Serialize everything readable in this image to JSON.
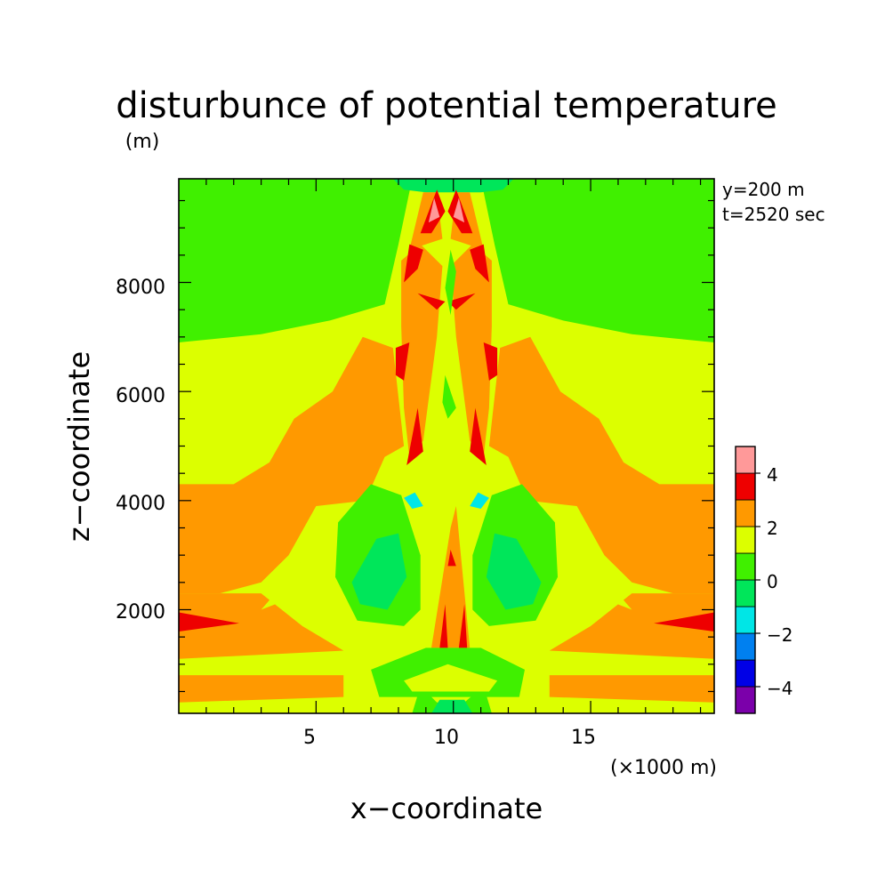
{
  "chart_data": {
    "type": "heatmap",
    "title": "disturbunce of potential temperature",
    "xlabel": "x−coordinate",
    "ylabel": "z−coordinate",
    "x_unit": "(×1000 m)",
    "y_unit": "(m)",
    "annotations": [
      "y=200 m",
      "t=2520 sec"
    ],
    "xlim": [
      0,
      19.5
    ],
    "ylim": [
      100,
      9900
    ],
    "x_ticks": [
      5,
      10,
      15
    ],
    "x_tick_labels": [
      "5",
      "10",
      "15"
    ],
    "y_ticks": [
      2000,
      4000,
      6000,
      8000
    ],
    "y_tick_labels": [
      "2000",
      "4000",
      "6000",
      "8000"
    ],
    "colorbar": {
      "levels": [
        -5,
        -4,
        -3,
        -2,
        -1,
        0,
        1,
        2,
        3,
        4,
        5
      ],
      "colors": [
        "#7b00aa",
        "#0000e6",
        "#0080f0",
        "#00e6e6",
        "#00e65a",
        "#40f000",
        "#dcff00",
        "#ff9900",
        "#ee0000",
        "#ff9999"
      ],
      "tick_values": [
        -4,
        -2,
        0,
        2,
        4
      ],
      "tick_labels": [
        "−4",
        "−2",
        "0",
        "2",
        "4"
      ]
    },
    "level_colors": {
      "neg1_0": "#00e65a",
      "0_1": "#40f000",
      "1_2": "#dcff00",
      "2_3": "#ff9900",
      "3_4": "#ee0000",
      "4_5": "#ff9999",
      "neg2_neg1": "#00e6e6",
      "above5": "#ffffff"
    },
    "contours": [
      {
        "level": "0_1",
        "points": [
          [
            0,
            6900
          ],
          [
            3,
            7050
          ],
          [
            5.5,
            7300
          ],
          [
            7.5,
            7600
          ],
          [
            8,
            8700
          ],
          [
            8.5,
            9900
          ],
          [
            0,
            9900
          ]
        ]
      },
      {
        "level": "0_1",
        "points": [
          [
            19.5,
            6900
          ],
          [
            16.5,
            7050
          ],
          [
            14,
            7300
          ],
          [
            12,
            7600
          ],
          [
            11.5,
            8700
          ],
          [
            11,
            9900
          ],
          [
            19.5,
            9900
          ]
        ]
      },
      {
        "level": "neg1_0",
        "points": [
          [
            7.8,
            9900
          ],
          [
            8.2,
            9700
          ],
          [
            9,
            9650
          ],
          [
            10,
            9650
          ],
          [
            11,
            9650
          ],
          [
            11.8,
            9700
          ],
          [
            12.2,
            9900
          ]
        ]
      },
      {
        "level": "2_3",
        "points": [
          [
            0,
            4300
          ],
          [
            2,
            4300
          ],
          [
            3.3,
            4700
          ],
          [
            4.2,
            5500
          ],
          [
            5.6,
            6000
          ],
          [
            6.7,
            7000
          ],
          [
            7.8,
            6800
          ],
          [
            8.2,
            5000
          ],
          [
            7.5,
            4800
          ],
          [
            6.8,
            4000
          ],
          [
            5,
            3900
          ],
          [
            4,
            3000
          ],
          [
            3,
            2500
          ],
          [
            1.5,
            2300
          ],
          [
            0,
            2300
          ]
        ]
      },
      {
        "level": "2_3",
        "points": [
          [
            19.5,
            4300
          ],
          [
            17.5,
            4300
          ],
          [
            16.2,
            4700
          ],
          [
            15.3,
            5500
          ],
          [
            13.9,
            6000
          ],
          [
            12.8,
            7000
          ],
          [
            11.7,
            6800
          ],
          [
            11.3,
            5000
          ],
          [
            12,
            4800
          ],
          [
            12.7,
            4000
          ],
          [
            14.5,
            3900
          ],
          [
            15.5,
            3000
          ],
          [
            16.5,
            2500
          ],
          [
            18,
            2300
          ],
          [
            19.5,
            2300
          ]
        ]
      },
      {
        "level": "2_3",
        "points": [
          [
            0,
            2300
          ],
          [
            3,
            2300
          ],
          [
            4.5,
            1700
          ],
          [
            6,
            1250
          ],
          [
            0,
            1100
          ]
        ]
      },
      {
        "level": "2_3",
        "points": [
          [
            19.5,
            2300
          ],
          [
            16.5,
            2300
          ],
          [
            15,
            1700
          ],
          [
            13.5,
            1250
          ],
          [
            19.5,
            1100
          ]
        ]
      },
      {
        "level": "2_3",
        "points": [
          [
            0,
            800
          ],
          [
            6,
            800
          ],
          [
            6,
            400
          ],
          [
            0,
            300
          ]
        ]
      },
      {
        "level": "2_3",
        "points": [
          [
            19.5,
            800
          ],
          [
            13.5,
            800
          ],
          [
            13.5,
            400
          ],
          [
            19.5,
            300
          ]
        ]
      },
      {
        "level": "1_2",
        "points": [
          [
            3,
            2000
          ],
          [
            4.8,
            2350
          ],
          [
            6.5,
            2600
          ],
          [
            7.5,
            3300
          ],
          [
            8,
            4300
          ],
          [
            6.6,
            3950
          ],
          [
            5.3,
            3500
          ],
          [
            4.2,
            2700
          ]
        ]
      },
      {
        "level": "1_2",
        "points": [
          [
            16.5,
            2000
          ],
          [
            14.7,
            2350
          ],
          [
            13,
            2600
          ],
          [
            12,
            3300
          ],
          [
            11.5,
            4300
          ],
          [
            12.9,
            3950
          ],
          [
            14.2,
            3500
          ],
          [
            15.3,
            2700
          ]
        ]
      },
      {
        "level": "0_1",
        "points": [
          [
            5.8,
            3600
          ],
          [
            7,
            4300
          ],
          [
            8.1,
            4100
          ],
          [
            8.8,
            3000
          ],
          [
            8.8,
            2000
          ],
          [
            8.2,
            1700
          ],
          [
            6.5,
            1800
          ],
          [
            5.7,
            2600
          ]
        ]
      },
      {
        "level": "0_1",
        "points": [
          [
            13.7,
            3600
          ],
          [
            12.5,
            4300
          ],
          [
            11.4,
            4100
          ],
          [
            10.7,
            3000
          ],
          [
            10.7,
            2000
          ],
          [
            11.3,
            1700
          ],
          [
            13,
            1800
          ],
          [
            13.8,
            2600
          ]
        ]
      },
      {
        "level": "neg1_0",
        "points": [
          [
            6.3,
            2500
          ],
          [
            7.2,
            3300
          ],
          [
            8,
            3400
          ],
          [
            8.3,
            2600
          ],
          [
            7.6,
            2000
          ],
          [
            6.6,
            2100
          ]
        ]
      },
      {
        "level": "neg1_0",
        "points": [
          [
            13.2,
            2500
          ],
          [
            12.3,
            3300
          ],
          [
            11.5,
            3400
          ],
          [
            11.2,
            2600
          ],
          [
            11.9,
            2000
          ],
          [
            12.9,
            2100
          ]
        ]
      },
      {
        "level": "neg2_neg1",
        "points": [
          [
            8.2,
            4050
          ],
          [
            8.6,
            4150
          ],
          [
            8.9,
            3900
          ],
          [
            8.5,
            3850
          ]
        ]
      },
      {
        "level": "neg2_neg1",
        "points": [
          [
            11.3,
            4050
          ],
          [
            10.9,
            4150
          ],
          [
            10.6,
            3900
          ],
          [
            11,
            3850
          ]
        ]
      },
      {
        "level": "2_3",
        "points": [
          [
            8.4,
            4800
          ],
          [
            8.9,
            5100
          ],
          [
            9.4,
            7000
          ],
          [
            9.6,
            8300
          ],
          [
            8.8,
            8700
          ],
          [
            8.1,
            8400
          ],
          [
            8.1,
            7200
          ],
          [
            8.2,
            5700
          ]
        ]
      },
      {
        "level": "2_3",
        "points": [
          [
            11.1,
            4800
          ],
          [
            10.6,
            5100
          ],
          [
            10.1,
            7000
          ],
          [
            9.9,
            8300
          ],
          [
            10.7,
            8700
          ],
          [
            11.4,
            8400
          ],
          [
            11.4,
            7200
          ],
          [
            11.3,
            5700
          ]
        ]
      },
      {
        "level": "2_3",
        "points": [
          [
            8.4,
            8600
          ],
          [
            8.9,
            9650
          ],
          [
            9.4,
            9650
          ],
          [
            9.6,
            8800
          ]
        ]
      },
      {
        "level": "2_3",
        "points": [
          [
            11.1,
            8600
          ],
          [
            10.6,
            9650
          ],
          [
            10.1,
            9650
          ],
          [
            9.9,
            8800
          ]
        ]
      },
      {
        "level": "3_4",
        "points": [
          [
            8.2,
            8000
          ],
          [
            8.7,
            8250
          ],
          [
            8.9,
            8600
          ],
          [
            8.4,
            8700
          ]
        ]
      },
      {
        "level": "3_4",
        "points": [
          [
            11.3,
            8000
          ],
          [
            10.8,
            8250
          ],
          [
            10.6,
            8600
          ],
          [
            11.1,
            8700
          ]
        ]
      },
      {
        "level": "3_4",
        "points": [
          [
            8.8,
            8900
          ],
          [
            9.4,
            9700
          ],
          [
            9.7,
            9300
          ],
          [
            9.2,
            8900
          ]
        ]
      },
      {
        "level": "3_4",
        "points": [
          [
            10.7,
            8900
          ],
          [
            10.1,
            9700
          ],
          [
            9.8,
            9300
          ],
          [
            10.3,
            8900
          ]
        ]
      },
      {
        "level": "4_5",
        "points": [
          [
            9.1,
            9100
          ],
          [
            9.3,
            9550
          ],
          [
            9.5,
            9200
          ]
        ]
      },
      {
        "level": "4_5",
        "points": [
          [
            10.4,
            9100
          ],
          [
            10.2,
            9550
          ],
          [
            10,
            9200
          ]
        ]
      },
      {
        "level": "3_4",
        "points": [
          [
            7.9,
            6800
          ],
          [
            8.4,
            6900
          ],
          [
            8.2,
            6200
          ],
          [
            7.9,
            6300
          ]
        ]
      },
      {
        "level": "3_4",
        "points": [
          [
            11.6,
            6800
          ],
          [
            11.1,
            6900
          ],
          [
            11.3,
            6200
          ],
          [
            11.6,
            6300
          ]
        ]
      },
      {
        "level": "3_4",
        "points": [
          [
            8.3,
            4650
          ],
          [
            8.7,
            5700
          ],
          [
            8.9,
            4900
          ]
        ]
      },
      {
        "level": "3_4",
        "points": [
          [
            11.2,
            4650
          ],
          [
            10.8,
            5700
          ],
          [
            10.6,
            4900
          ]
        ]
      },
      {
        "level": "3_4",
        "points": [
          [
            8.7,
            7800
          ],
          [
            9.7,
            7650
          ],
          [
            9.4,
            7500
          ]
        ]
      },
      {
        "level": "3_4",
        "points": [
          [
            10.8,
            7800
          ],
          [
            9.8,
            7650
          ],
          [
            10.1,
            7500
          ]
        ]
      },
      {
        "level": "2_3",
        "points": [
          [
            9.2,
            1300
          ],
          [
            9.9,
            3500
          ],
          [
            10.1,
            3900
          ],
          [
            10.6,
            1300
          ]
        ]
      },
      {
        "level": "3_4",
        "points": [
          [
            9.5,
            1300
          ],
          [
            9.7,
            2100
          ],
          [
            9.8,
            1300
          ]
        ]
      },
      {
        "level": "3_4",
        "points": [
          [
            10.2,
            1300
          ],
          [
            10.4,
            2100
          ],
          [
            10.5,
            1300
          ]
        ]
      },
      {
        "level": "3_4",
        "points": [
          [
            9.8,
            2800
          ],
          [
            9.9,
            3100
          ],
          [
            10.1,
            2800
          ]
        ]
      },
      {
        "level": "3_4",
        "points": [
          [
            0,
            1600
          ],
          [
            2.2,
            1750
          ],
          [
            0,
            1950
          ]
        ]
      },
      {
        "level": "3_4",
        "points": [
          [
            19.5,
            1600
          ],
          [
            17.3,
            1750
          ],
          [
            19.5,
            1950
          ]
        ]
      },
      {
        "level": "0_1",
        "points": [
          [
            8.5,
            100
          ],
          [
            8.8,
            600
          ],
          [
            9.4,
            300
          ],
          [
            10.4,
            300
          ],
          [
            11.1,
            600
          ],
          [
            11.4,
            100
          ]
        ]
      },
      {
        "level": "neg1_0",
        "points": [
          [
            9.2,
            100
          ],
          [
            9.5,
            350
          ],
          [
            10.4,
            350
          ],
          [
            10.7,
            100
          ]
        ]
      },
      {
        "level": "0_1",
        "points": [
          [
            7,
            900
          ],
          [
            9,
            1300
          ],
          [
            11,
            1300
          ],
          [
            12.6,
            900
          ],
          [
            12.4,
            400
          ],
          [
            7.3,
            400
          ]
        ]
      },
      {
        "level": "1_2",
        "points": [
          [
            8.2,
            700
          ],
          [
            9.8,
            1000
          ],
          [
            11.6,
            700
          ],
          [
            11.3,
            500
          ],
          [
            8.5,
            500
          ]
        ]
      },
      {
        "level": "1_2",
        "points": [
          [
            9.5,
            6600
          ],
          [
            9.8,
            6200
          ],
          [
            10.2,
            5600
          ],
          [
            9.8,
            5300
          ],
          [
            9.4,
            5600
          ]
        ]
      },
      {
        "level": "0_1",
        "points": [
          [
            9.7,
            6300
          ],
          [
            9.9,
            6000
          ],
          [
            10.1,
            5700
          ],
          [
            9.8,
            5500
          ],
          [
            9.6,
            5800
          ]
        ]
      },
      {
        "level": "0_1",
        "points": [
          [
            9.7,
            7900
          ],
          [
            9.9,
            8600
          ],
          [
            10.1,
            8200
          ],
          [
            9.9,
            7400
          ]
        ]
      }
    ]
  }
}
